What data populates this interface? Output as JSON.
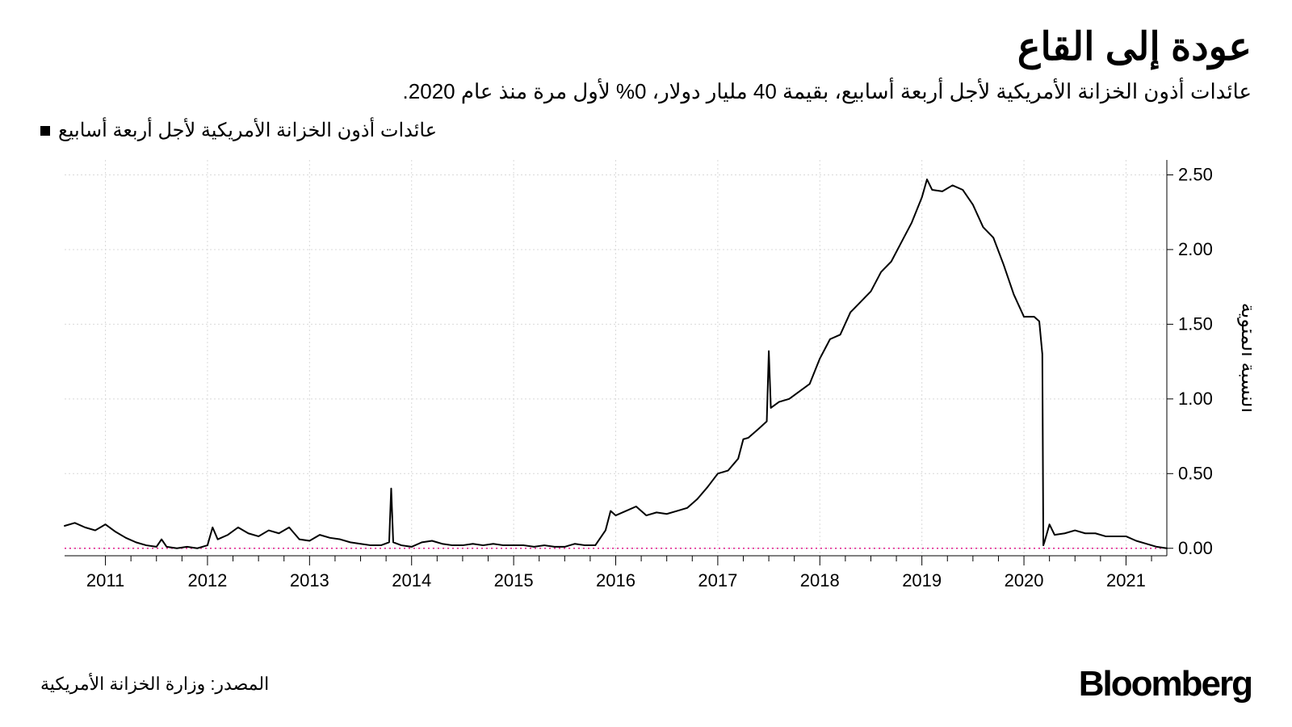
{
  "title": "عودة إلى القاع",
  "subtitle": "عائدات أذون الخزانة الأمريكية لأجل أربعة أسابيع، بقيمة 40 مليار دولار، 0% لأول مرة منذ عام 2020.",
  "legend": {
    "label": "عائدات أذون الخزانة الأمريكية لأجل أربعة أسابيع",
    "marker_color": "#000000"
  },
  "source": "المصدر: وزارة الخزانة الأمريكية",
  "brand": "Bloomberg",
  "chart": {
    "type": "line",
    "direction": "rtl",
    "background_color": "#ffffff",
    "grid_color": "#d9d9d9",
    "axis_color": "#000000",
    "line_color": "#000000",
    "line_width": 2,
    "zero_line_color": "#e31b8c",
    "zero_line_dash": "2 4",
    "zero_line_width": 1.5,
    "ylim": [
      -0.05,
      2.6
    ],
    "yticks": [
      0.0,
      0.5,
      1.0,
      1.5,
      2.0,
      2.5
    ],
    "ytick_labels": [
      "0.00",
      "0.50",
      "1.00",
      "1.50",
      "2.00",
      "2.50"
    ],
    "y_axis_title": "النسبة المئوية",
    "xlim": [
      2010.6,
      2021.4
    ],
    "xticks": [
      2011,
      2012,
      2013,
      2014,
      2015,
      2016,
      2017,
      2018,
      2019,
      2020,
      2021
    ],
    "minor_xticks_per_year": 3,
    "tick_fontsize": 22,
    "title_fontsize": 48,
    "series": [
      {
        "name": "yield",
        "x": [
          2010.6,
          2010.7,
          2010.8,
          2010.9,
          2011.0,
          2011.1,
          2011.2,
          2011.3,
          2011.4,
          2011.5,
          2011.55,
          2011.6,
          2011.7,
          2011.8,
          2011.9,
          2012.0,
          2012.05,
          2012.1,
          2012.2,
          2012.3,
          2012.4,
          2012.5,
          2012.6,
          2012.7,
          2012.8,
          2012.9,
          2013.0,
          2013.1,
          2013.2,
          2013.3,
          2013.4,
          2013.5,
          2013.6,
          2013.7,
          2013.78,
          2013.8,
          2013.82,
          2013.9,
          2014.0,
          2014.1,
          2014.2,
          2014.3,
          2014.4,
          2014.5,
          2014.6,
          2014.7,
          2014.8,
          2014.9,
          2015.0,
          2015.1,
          2015.2,
          2015.3,
          2015.4,
          2015.5,
          2015.6,
          2015.7,
          2015.8,
          2015.9,
          2015.95,
          2016.0,
          2016.1,
          2016.2,
          2016.3,
          2016.4,
          2016.5,
          2016.6,
          2016.7,
          2016.8,
          2016.9,
          2017.0,
          2017.1,
          2017.2,
          2017.25,
          2017.3,
          2017.4,
          2017.48,
          2017.5,
          2017.52,
          2017.6,
          2017.7,
          2017.8,
          2017.9,
          2018.0,
          2018.1,
          2018.2,
          2018.3,
          2018.4,
          2018.5,
          2018.6,
          2018.7,
          2018.8,
          2018.9,
          2019.0,
          2019.05,
          2019.1,
          2019.2,
          2019.3,
          2019.4,
          2019.5,
          2019.6,
          2019.7,
          2019.8,
          2019.9,
          2020.0,
          2020.1,
          2020.15,
          2020.18,
          2020.19,
          2020.2,
          2020.25,
          2020.3,
          2020.4,
          2020.5,
          2020.6,
          2020.7,
          2020.8,
          2020.9,
          2021.0,
          2021.1,
          2021.2,
          2021.3,
          2021.4
        ],
        "y": [
          0.15,
          0.17,
          0.14,
          0.12,
          0.16,
          0.11,
          0.07,
          0.04,
          0.02,
          0.01,
          0.06,
          0.01,
          0.0,
          0.01,
          0.0,
          0.02,
          0.14,
          0.06,
          0.09,
          0.14,
          0.1,
          0.08,
          0.12,
          0.1,
          0.14,
          0.06,
          0.05,
          0.09,
          0.07,
          0.06,
          0.04,
          0.03,
          0.02,
          0.02,
          0.04,
          0.4,
          0.04,
          0.02,
          0.01,
          0.04,
          0.05,
          0.03,
          0.02,
          0.02,
          0.03,
          0.02,
          0.03,
          0.02,
          0.02,
          0.02,
          0.01,
          0.02,
          0.01,
          0.01,
          0.03,
          0.02,
          0.02,
          0.12,
          0.25,
          0.22,
          0.25,
          0.28,
          0.22,
          0.24,
          0.23,
          0.25,
          0.27,
          0.33,
          0.41,
          0.5,
          0.52,
          0.6,
          0.73,
          0.74,
          0.8,
          0.85,
          1.32,
          0.94,
          0.98,
          1.0,
          1.05,
          1.1,
          1.27,
          1.4,
          1.43,
          1.58,
          1.65,
          1.72,
          1.85,
          1.92,
          2.05,
          2.18,
          2.35,
          2.47,
          2.4,
          2.39,
          2.43,
          2.4,
          2.3,
          2.15,
          2.08,
          1.9,
          1.7,
          1.55,
          1.55,
          1.52,
          1.3,
          0.02,
          0.04,
          0.16,
          0.09,
          0.1,
          0.12,
          0.1,
          0.1,
          0.08,
          0.08,
          0.08,
          0.05,
          0.03,
          0.01,
          0.0
        ]
      }
    ]
  }
}
